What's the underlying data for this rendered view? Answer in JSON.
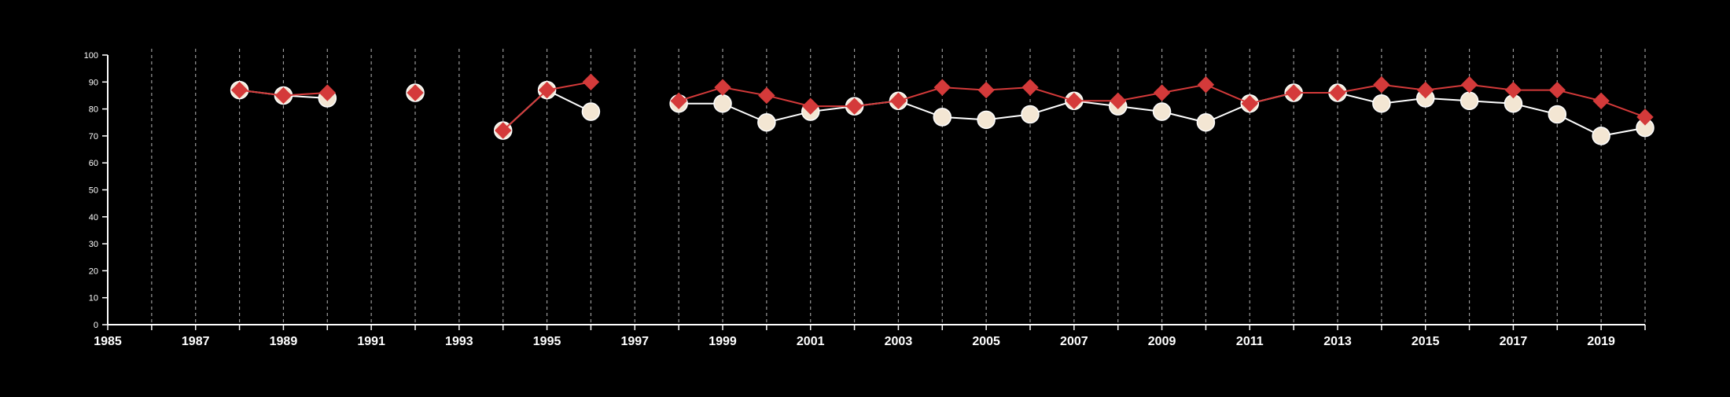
{
  "chart_data": {
    "type": "line",
    "title": "",
    "xlabel": "",
    "ylabel": "",
    "xlim": [
      1985,
      2020
    ],
    "ylim": [
      0,
      100
    ],
    "x_ticks": [
      1985,
      1987,
      1989,
      1991,
      1993,
      1995,
      1997,
      1999,
      2001,
      2003,
      2005,
      2007,
      2009,
      2011,
      2013,
      2015,
      2017,
      2019
    ],
    "y_ticks": [
      0,
      10,
      20,
      30,
      40,
      50,
      60,
      70,
      80,
      90,
      100
    ],
    "grid": "vertical dashed lines at every year",
    "legend": "none",
    "x": [
      1988,
      1989,
      1990,
      1991,
      1992,
      1993,
      1994,
      1995,
      1996,
      1997,
      1998,
      1999,
      2000,
      2001,
      2002,
      2003,
      2004,
      2005,
      2006,
      2007,
      2008,
      2009,
      2010,
      2011,
      2012,
      2013,
      2014,
      2015,
      2016,
      2017,
      2018,
      2019,
      2020
    ],
    "series": [
      {
        "marker": "circle",
        "color": "#ffffff",
        "fill": "#f3e6d3",
        "values": [
          87,
          85,
          84,
          null,
          86,
          null,
          72,
          87,
          79,
          null,
          82,
          82,
          75,
          79,
          81,
          83,
          77,
          76,
          78,
          83,
          81,
          79,
          75,
          82,
          86,
          86,
          82,
          84,
          83,
          82,
          78,
          70,
          73
        ]
      },
      {
        "marker": "diamond",
        "color": "#d43a3a",
        "fill": "#d43a3a",
        "values": [
          87,
          85,
          86,
          null,
          86,
          null,
          72,
          87,
          90,
          null,
          83,
          88,
          85,
          81,
          81,
          83,
          88,
          87,
          88,
          83,
          83,
          86,
          89,
          82,
          86,
          86,
          89,
          87,
          89,
          87,
          87,
          83,
          77
        ]
      }
    ]
  }
}
